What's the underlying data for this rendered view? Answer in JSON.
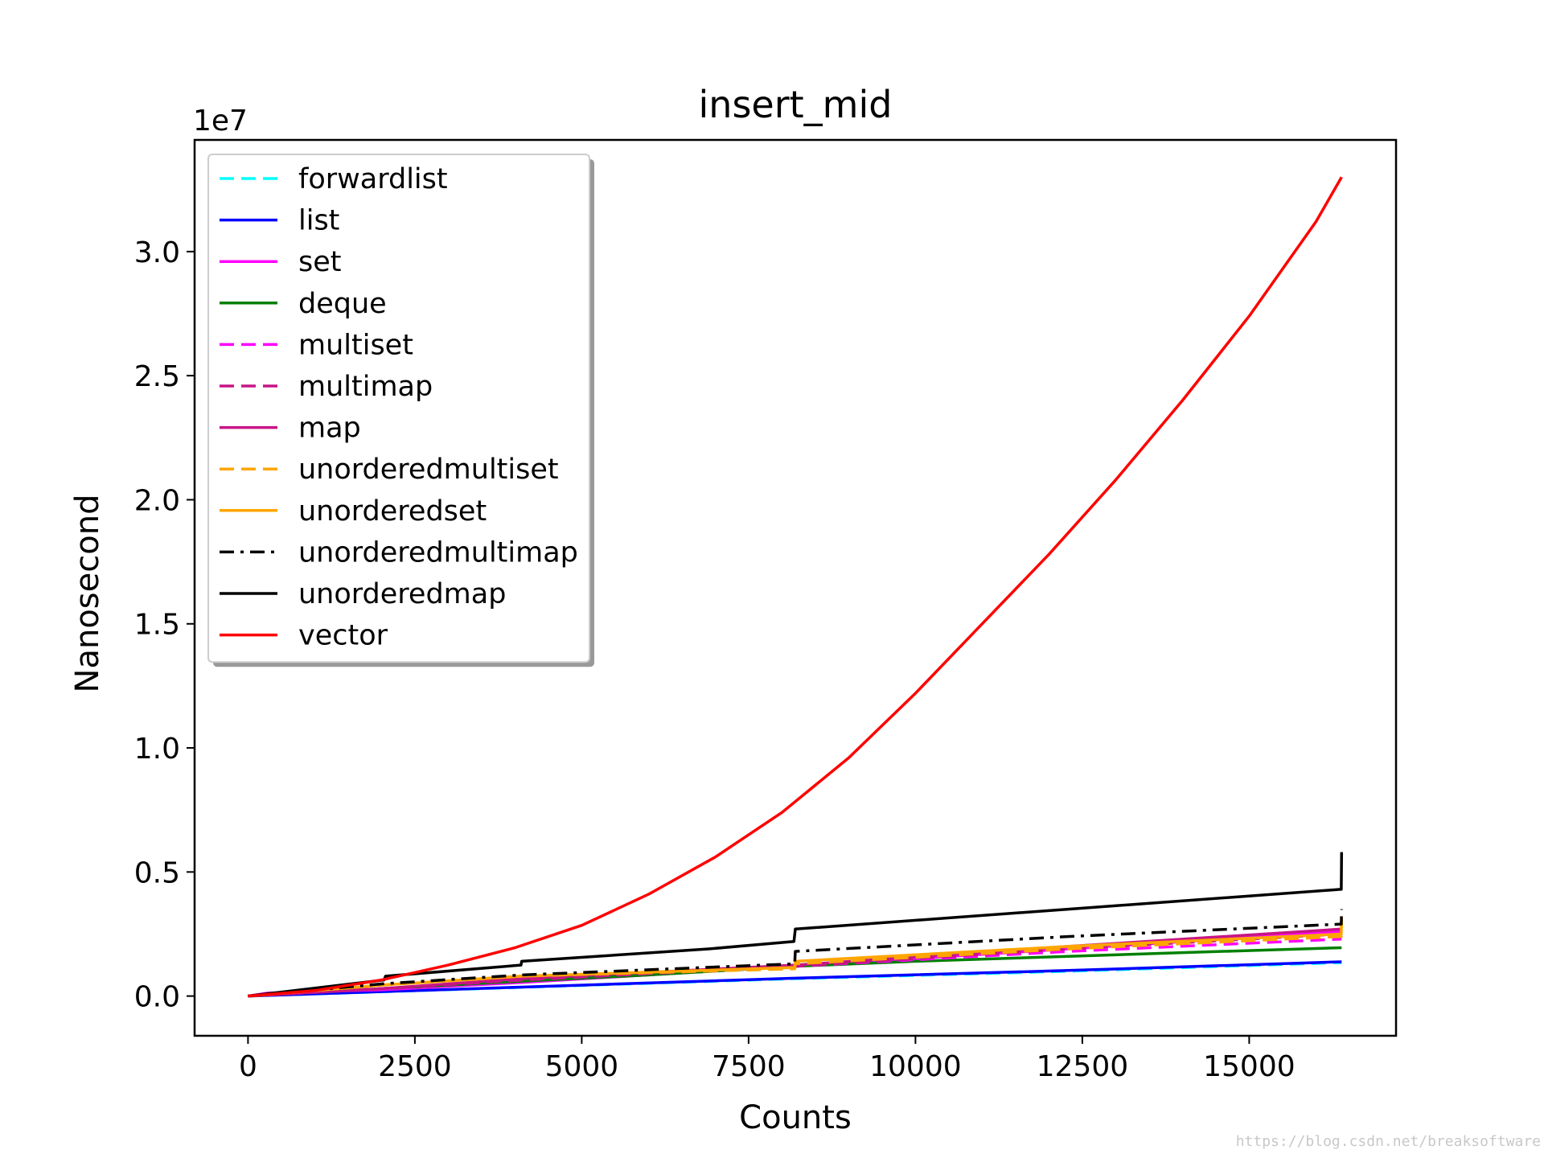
{
  "chart_data": {
    "type": "line",
    "title": "insert_mid",
    "xlabel": "Counts",
    "ylabel": "Nanosecond",
    "y_offset_label": "1e7",
    "xlim": [
      -800,
      17200
    ],
    "ylim": [
      -0.16,
      3.45
    ],
    "x_ticks": [
      0,
      2500,
      5000,
      7500,
      10000,
      12500,
      15000
    ],
    "x_tick_labels": [
      "0",
      "2500",
      "5000",
      "7500",
      "10000",
      "12500",
      "15000"
    ],
    "y_ticks": [
      0.0,
      0.5,
      1.0,
      1.5,
      2.0,
      2.5,
      3.0
    ],
    "y_tick_labels": [
      "0.0",
      "0.5",
      "1.0",
      "1.5",
      "2.0",
      "2.5",
      "3.0"
    ],
    "grid": false,
    "legend_position": "top-left",
    "series": [
      {
        "name": "forwardlist",
        "color": "#00ffff",
        "style": "dashed",
        "x": [
          0,
          4096,
          8192,
          12288,
          16384
        ],
        "y": [
          0,
          0.035,
          0.07,
          0.1,
          0.135
        ]
      },
      {
        "name": "list",
        "color": "#0000ff",
        "style": "solid",
        "x": [
          0,
          4096,
          8192,
          12288,
          16384
        ],
        "y": [
          0,
          0.036,
          0.072,
          0.103,
          0.138
        ]
      },
      {
        "name": "set",
        "color": "#ff00ff",
        "style": "solid",
        "x": [
          0,
          300,
          2000,
          4096,
          8192,
          12288,
          16384
        ],
        "y": [
          0,
          0.012,
          0.025,
          0.055,
          0.12,
          0.19,
          0.26
        ]
      },
      {
        "name": "deque",
        "color": "#008000",
        "style": "solid",
        "x": [
          0,
          2000,
          4096,
          6000,
          8192,
          10000,
          12288,
          14000,
          16384
        ],
        "y": [
          0,
          0.03,
          0.06,
          0.085,
          0.12,
          0.14,
          0.16,
          0.175,
          0.195
        ]
      },
      {
        "name": "multiset",
        "color": "#ff00ff",
        "style": "dashed",
        "x": [
          0,
          2000,
          4096,
          8192,
          12288,
          16384
        ],
        "y": [
          0,
          0.03,
          0.065,
          0.12,
          0.18,
          0.23
        ]
      },
      {
        "name": "multimap",
        "color": "#c71585",
        "style": "dashed",
        "x": [
          0,
          2000,
          4096,
          8192,
          12288,
          16384
        ],
        "y": [
          0,
          0.03,
          0.065,
          0.12,
          0.19,
          0.25
        ]
      },
      {
        "name": "map",
        "color": "#c71585",
        "style": "solid",
        "x": [
          0,
          2000,
          4096,
          8192,
          12288,
          16384
        ],
        "y": [
          0,
          0.03,
          0.07,
          0.125,
          0.2,
          0.27
        ]
      },
      {
        "name": "unorderedmultiset",
        "color": "#ffa500",
        "style": "dashed",
        "x": [
          0,
          2048,
          4096,
          8190,
          8200,
          12288,
          16380,
          16384
        ],
        "y": [
          0,
          0.045,
          0.08,
          0.11,
          0.13,
          0.19,
          0.24,
          0.3
        ]
      },
      {
        "name": "unorderedset",
        "color": "#ffa500",
        "style": "solid",
        "x": [
          0,
          2048,
          4096,
          8190,
          8200,
          12288,
          16380,
          16384
        ],
        "y": [
          0,
          0.045,
          0.08,
          0.115,
          0.14,
          0.2,
          0.25,
          0.32
        ]
      },
      {
        "name": "unorderedmultimap",
        "color": "#000000",
        "style": "dashdot",
        "x": [
          0,
          2048,
          4096,
          8190,
          8200,
          12288,
          16380,
          16384
        ],
        "y": [
          0,
          0.05,
          0.085,
          0.13,
          0.18,
          0.24,
          0.29,
          0.35
        ]
      },
      {
        "name": "unorderedmap",
        "color": "#000000",
        "style": "solid",
        "x": [
          0,
          2040,
          2060,
          4090,
          4100,
          6900,
          8180,
          8200,
          12288,
          16370,
          16380,
          16384
        ],
        "y": [
          0,
          0.065,
          0.08,
          0.125,
          0.14,
          0.19,
          0.22,
          0.27,
          0.35,
          0.43,
          0.43,
          0.58
        ]
      },
      {
        "name": "vector",
        "color": "#ff0000",
        "style": "solid",
        "x": [
          0,
          1000,
          2000,
          3000,
          4000,
          5000,
          6000,
          7000,
          8000,
          9000,
          10000,
          11000,
          12000,
          13000,
          14000,
          15000,
          16000,
          16384
        ],
        "y": [
          0,
          0.022,
          0.065,
          0.125,
          0.195,
          0.285,
          0.41,
          0.56,
          0.74,
          0.96,
          1.22,
          1.5,
          1.78,
          2.08,
          2.4,
          2.74,
          3.12,
          3.3
        ]
      }
    ]
  },
  "watermark": "https://blog.csdn.net/breaksoftware"
}
